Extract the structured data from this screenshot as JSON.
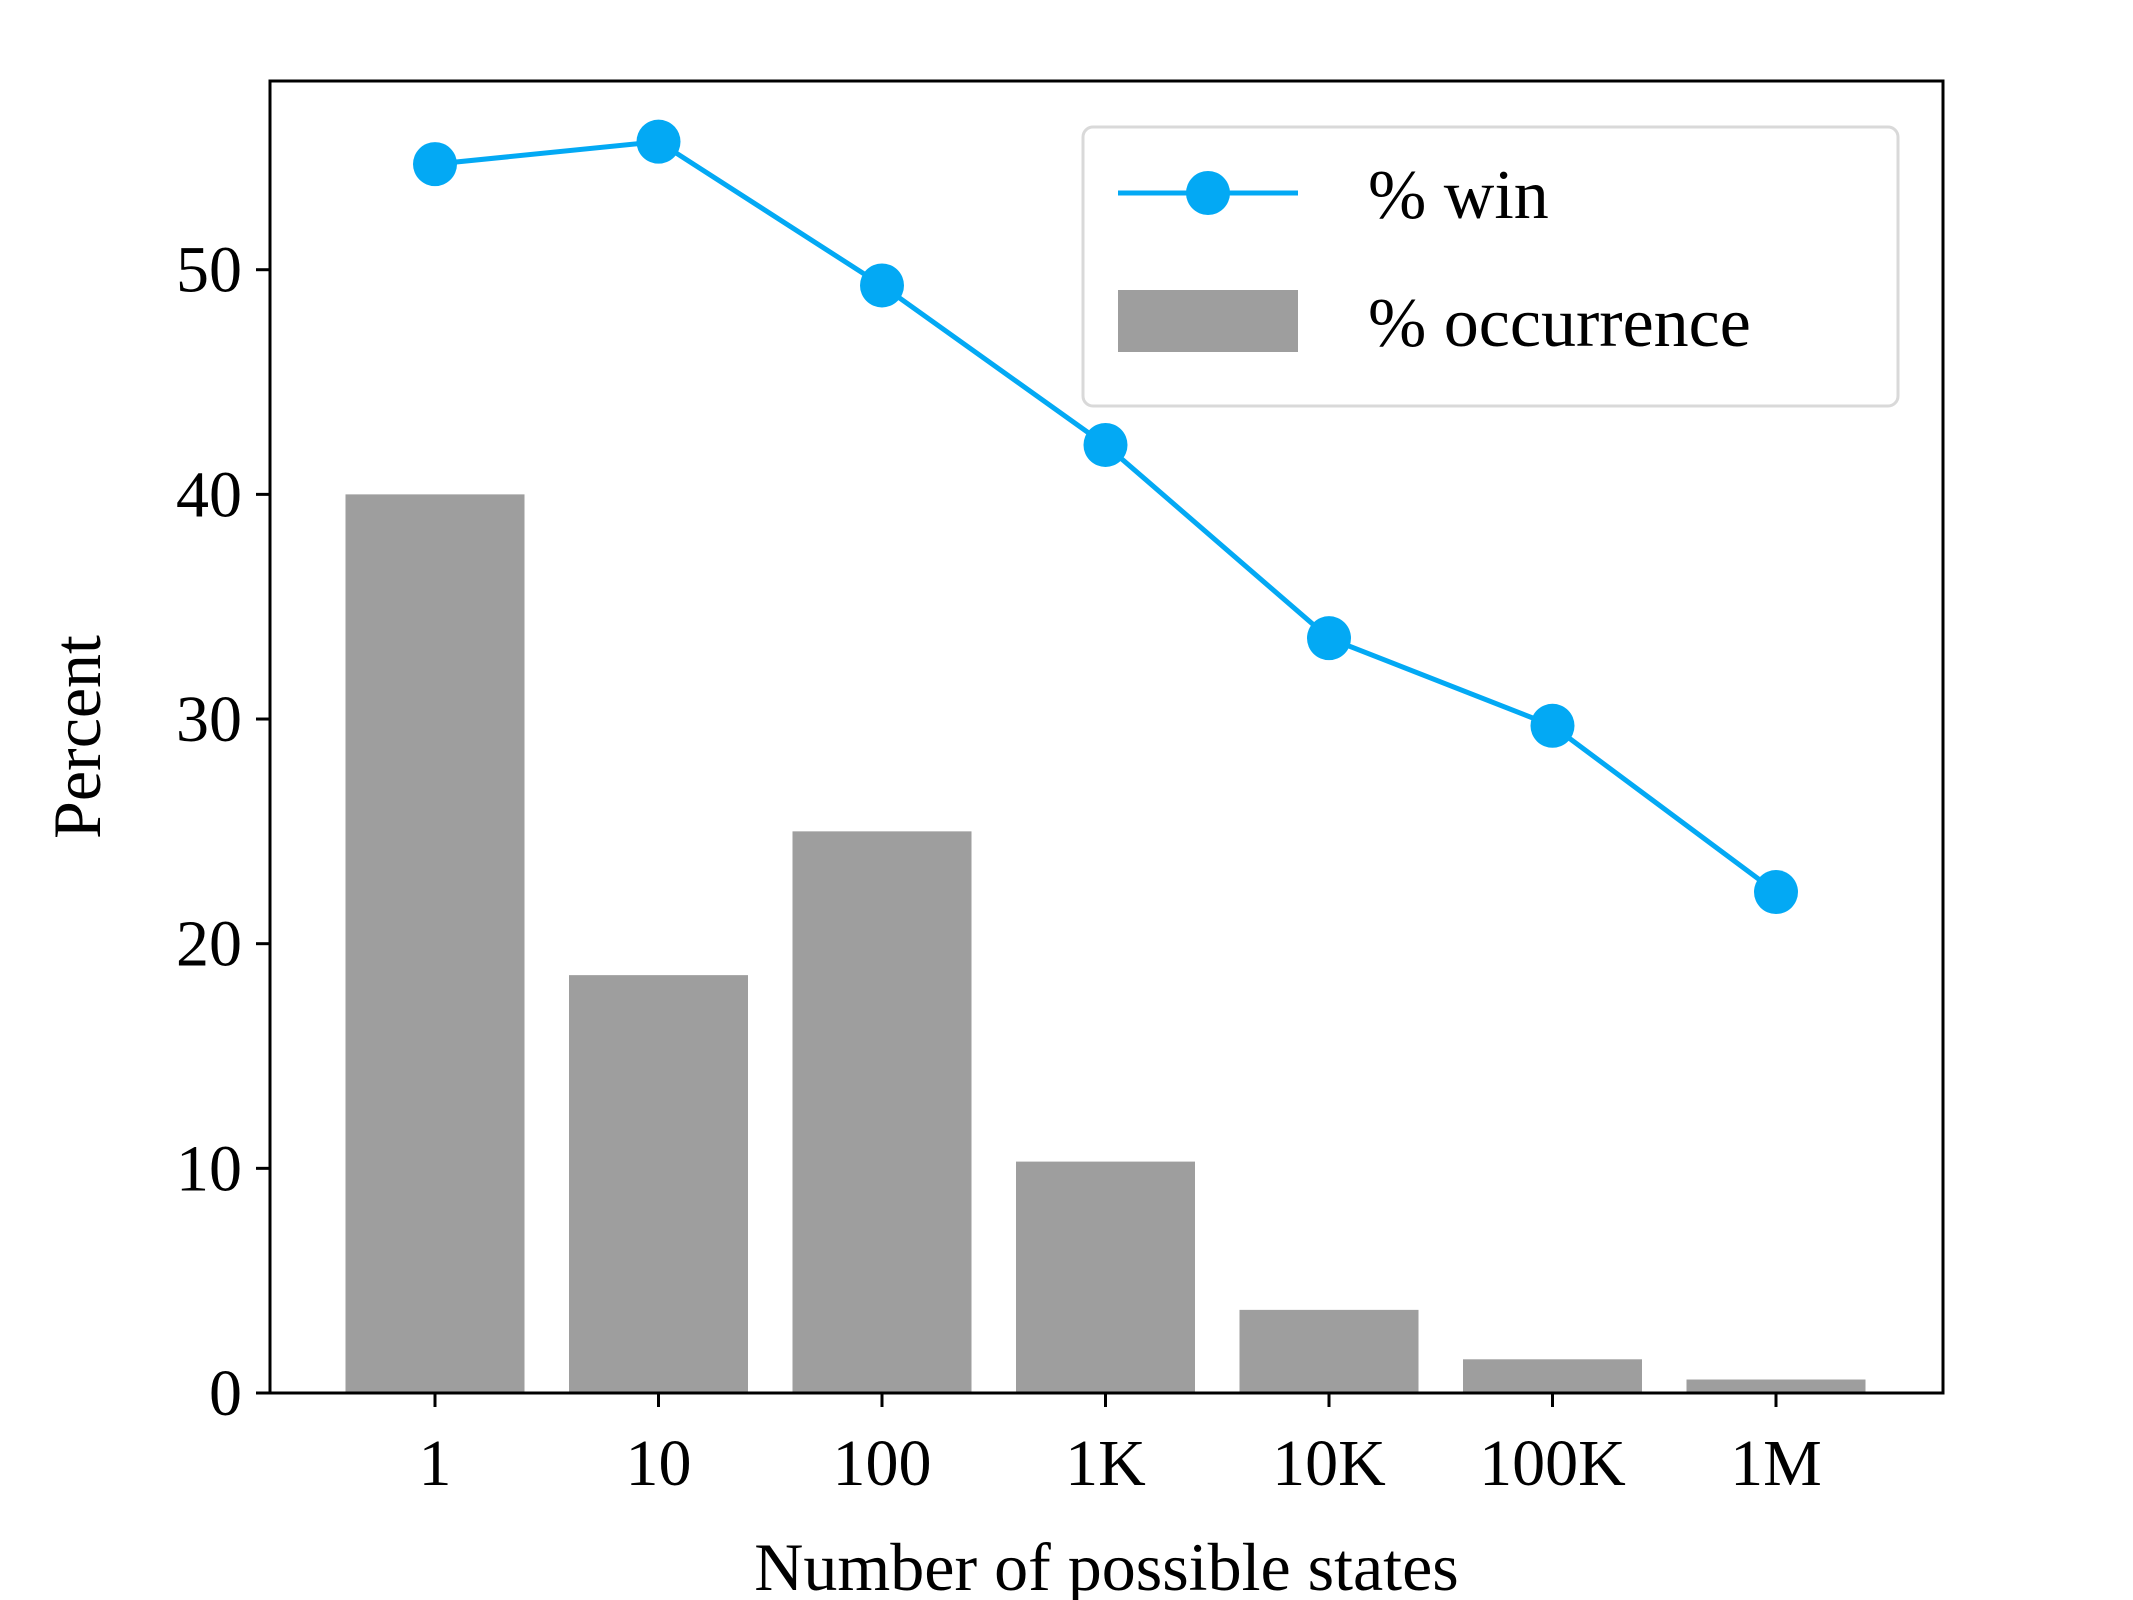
{
  "chart_data": {
    "type": "bar",
    "categories": [
      "1",
      "10",
      "100",
      "1K",
      "10K",
      "100K",
      "1M"
    ],
    "series": [
      {
        "name": "% occurrence",
        "type": "bar",
        "values": [
          40.0,
          18.6,
          25.0,
          10.3,
          3.7,
          1.5,
          0.6
        ]
      },
      {
        "name": "% win",
        "type": "line",
        "values": [
          54.7,
          55.7,
          49.3,
          42.2,
          33.6,
          29.7,
          22.3
        ]
      }
    ],
    "xlabel": "Number of possible states",
    "ylabel": "Percent",
    "ylim": [
      0,
      58.4
    ],
    "yticks": [
      0,
      10,
      20,
      30,
      40,
      50
    ],
    "legend_position": "top-right",
    "grid": false,
    "colors": {
      "bar": "#9e9e9e",
      "line": "#03a9f4",
      "axes": "#000000",
      "legend_border": "#d9d9d9"
    }
  }
}
